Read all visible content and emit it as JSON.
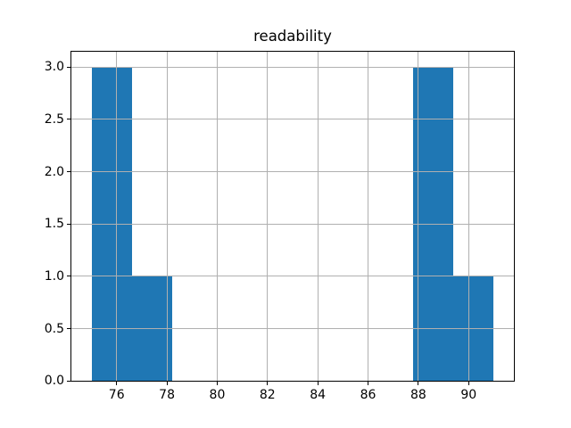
{
  "figure": {
    "background": "#ffffff"
  },
  "chart_data": {
    "type": "bar",
    "subtype": "histogram",
    "title": "readability",
    "xlabel": "",
    "ylabel": "",
    "bin_edges": [
      75.0,
      76.6,
      78.2,
      79.8,
      81.4,
      83.0,
      84.6,
      86.2,
      87.8,
      89.4,
      91.0
    ],
    "counts": [
      3,
      1,
      0,
      0,
      0,
      0,
      0,
      0,
      3,
      1
    ],
    "xlim": [
      74.2,
      91.8
    ],
    "ylim": [
      0,
      3.15
    ],
    "xticks": [
      76,
      78,
      80,
      82,
      84,
      86,
      88,
      90
    ],
    "xtick_labels": [
      "76",
      "78",
      "80",
      "82",
      "84",
      "86",
      "88",
      "90"
    ],
    "yticks": [
      0,
      0.5,
      1.0,
      1.5,
      2.0,
      2.5,
      3.0
    ],
    "ytick_labels": [
      "0.0",
      "0.5",
      "1.0",
      "1.5",
      "2.0",
      "2.5",
      "3.0"
    ],
    "grid": true,
    "grid_on_top_of_bars": true,
    "legend_position": "none",
    "bar_color": "#1f77b4",
    "grid_color": "#b0b0b0",
    "axis_color": "#000000"
  }
}
